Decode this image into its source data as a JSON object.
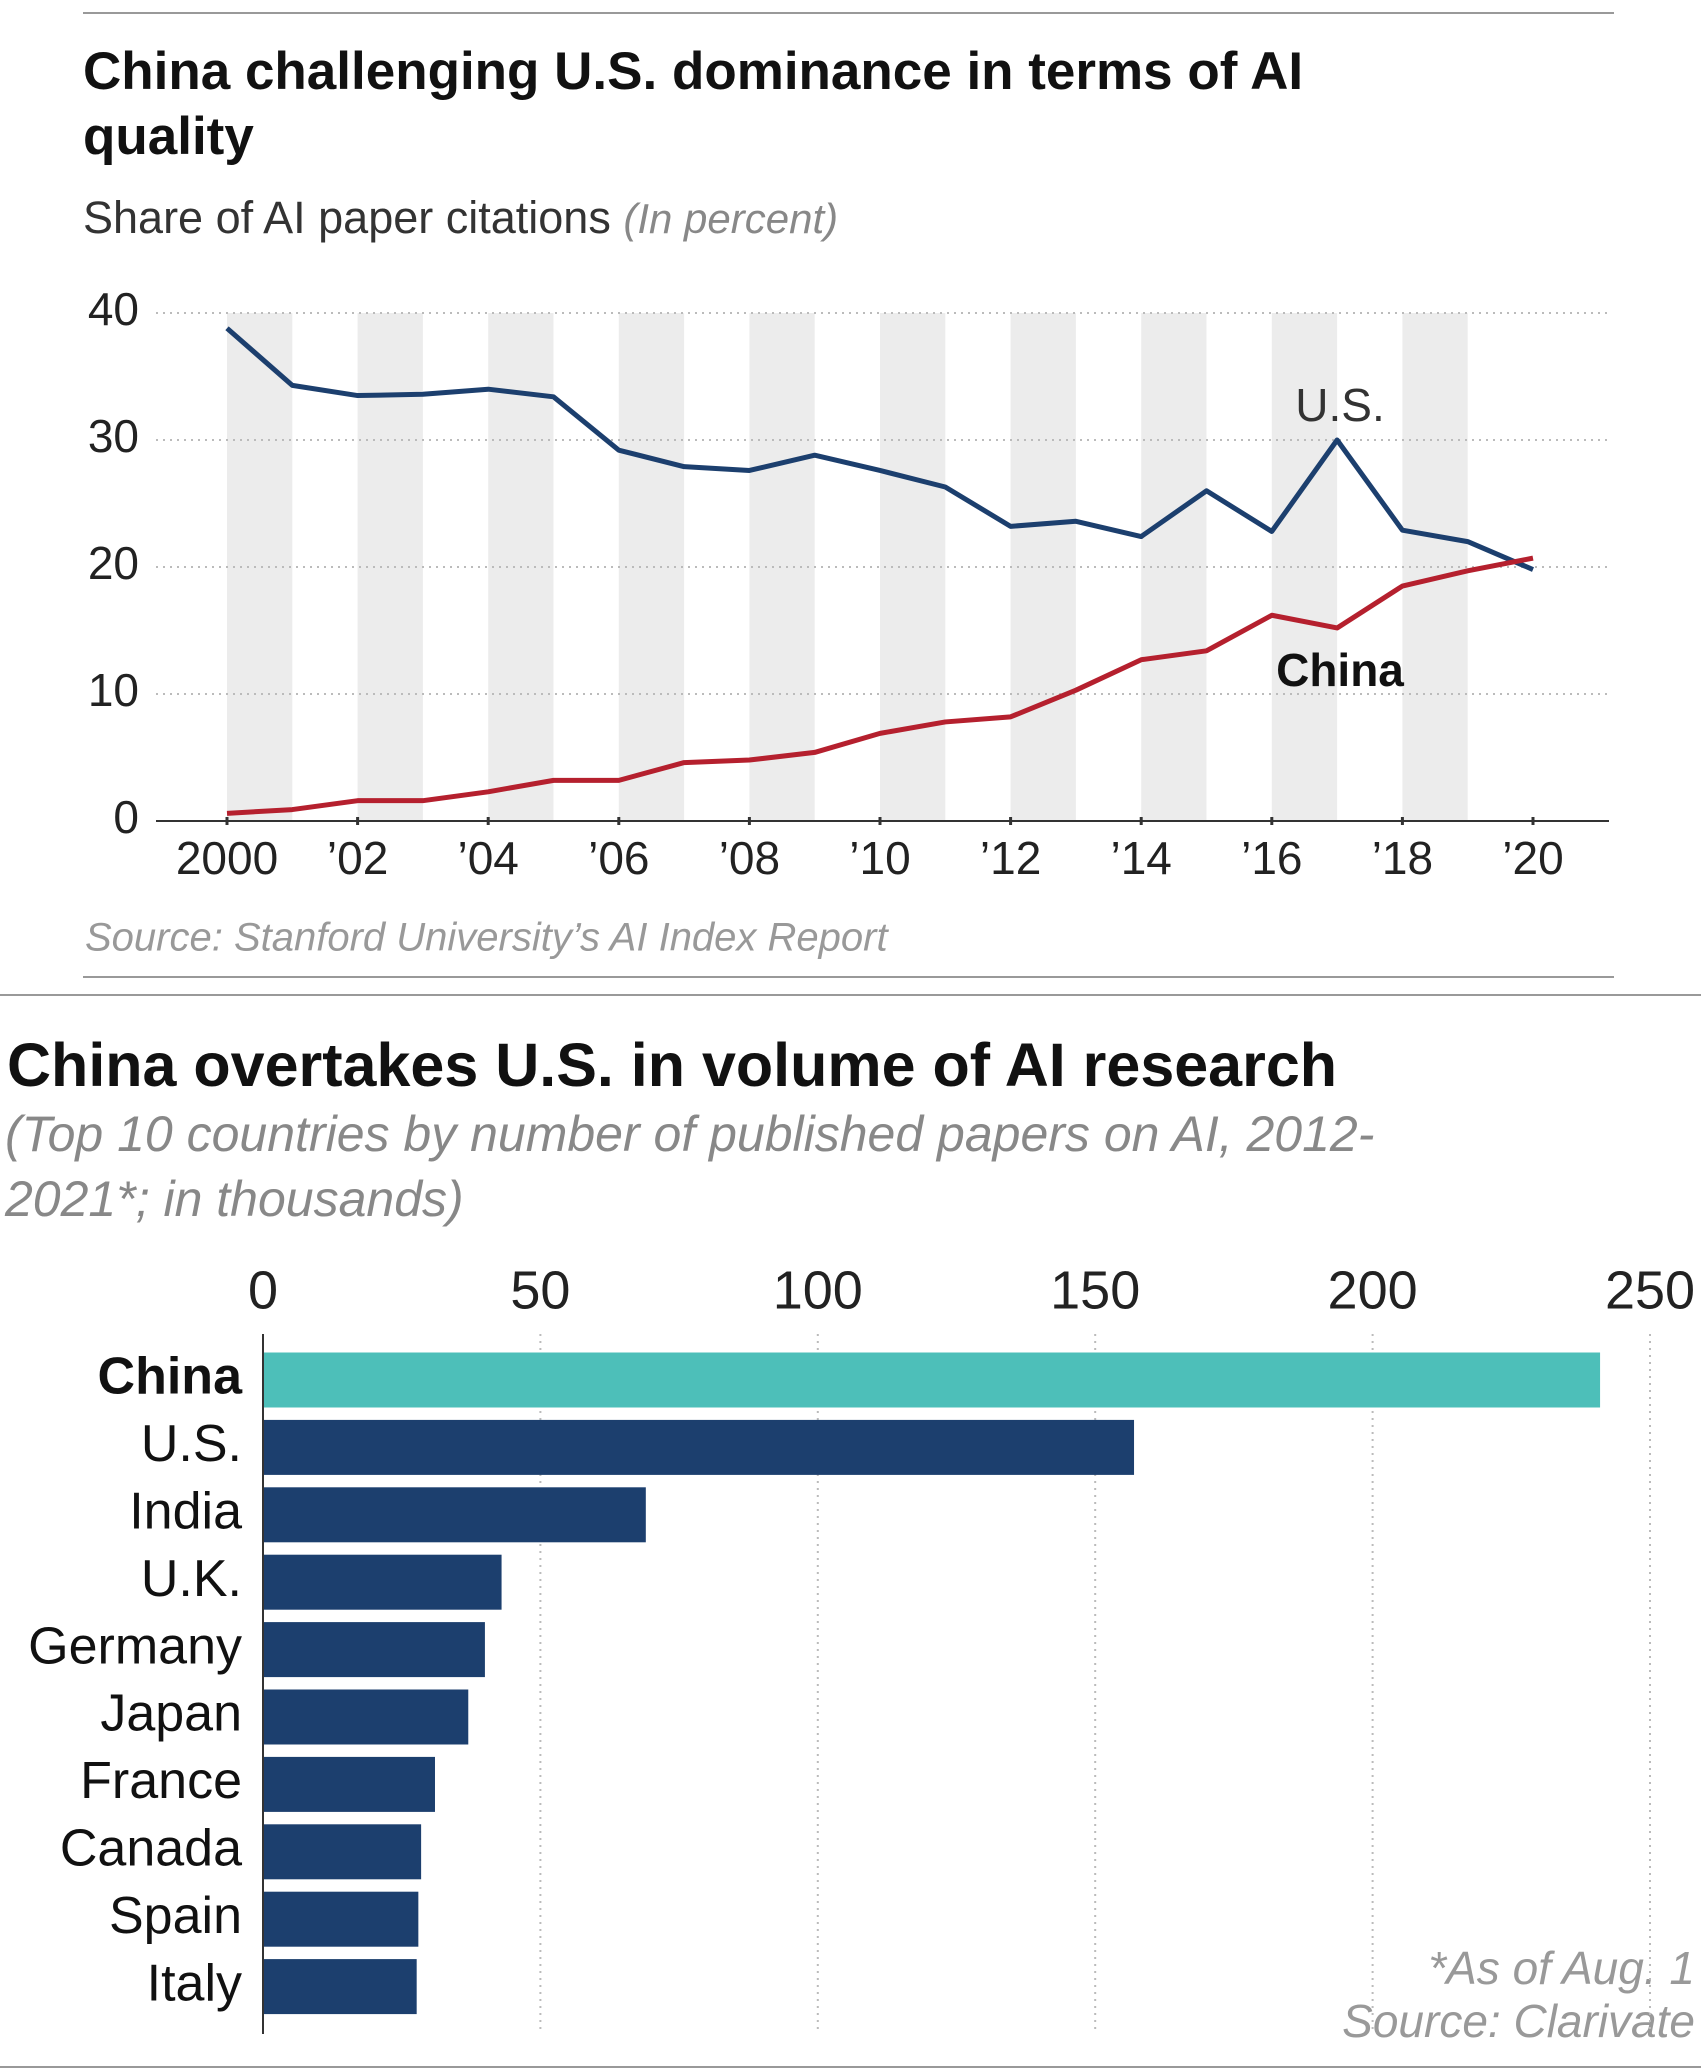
{
  "chart_data": [
    {
      "type": "line",
      "title": "China challenging U.S. dominance in terms of AI quality",
      "subtitle": "Share of AI paper citations",
      "unit": "(In percent)",
      "source": "Source: Stanford University’s AI Index Report",
      "x": [
        2000,
        2001,
        2002,
        2003,
        2004,
        2005,
        2006,
        2007,
        2008,
        2009,
        2010,
        2011,
        2012,
        2013,
        2014,
        2015,
        2016,
        2017,
        2018,
        2019,
        2020
      ],
      "series": [
        {
          "name": "U.S.",
          "color": "#1c3f6e",
          "values": [
            38.8,
            34.3,
            33.5,
            33.6,
            34.0,
            33.4,
            29.2,
            27.9,
            27.6,
            28.8,
            27.6,
            26.3,
            23.2,
            23.6,
            22.4,
            26.0,
            22.8,
            30.0,
            22.9,
            22.0,
            19.8
          ]
        },
        {
          "name": "China",
          "color": "#b5202e",
          "values": [
            0.6,
            0.9,
            1.6,
            1.6,
            2.3,
            3.2,
            3.2,
            4.6,
            4.8,
            5.4,
            6.9,
            7.8,
            8.2,
            10.3,
            12.7,
            13.4,
            16.2,
            15.2,
            18.5,
            19.7,
            20.7
          ]
        }
      ],
      "xlim": [
        2000,
        2020
      ],
      "xticks": [
        {
          "value": 2000,
          "label": "2000"
        },
        {
          "value": 2002,
          "label": "’02"
        },
        {
          "value": 2004,
          "label": "’04"
        },
        {
          "value": 2006,
          "label": "’06"
        },
        {
          "value": 2008,
          "label": "’08"
        },
        {
          "value": 2010,
          "label": "’10"
        },
        {
          "value": 2012,
          "label": "’12"
        },
        {
          "value": 2014,
          "label": "’14"
        },
        {
          "value": 2016,
          "label": "’16"
        },
        {
          "value": 2018,
          "label": "’18"
        },
        {
          "value": 2020,
          "label": "’20"
        }
      ],
      "ylim": [
        0,
        40
      ],
      "yticks": [
        0,
        10,
        20,
        30,
        40
      ],
      "grid": true
    },
    {
      "type": "hbar",
      "title": "China overtakes U.S. in volume of AI research",
      "subtitle": "(Top 10 countries by number of published papers on AI, 2012-2021*; in thousands)",
      "note": "*As of Aug. 1",
      "source": "Source: Clarivate",
      "categories": [
        "China",
        "U.S.",
        "India",
        "U.K.",
        "Germany",
        "Japan",
        "France",
        "Canada",
        "Spain",
        "Italy"
      ],
      "values": [
        241,
        157,
        69,
        43,
        40,
        37,
        31,
        28.5,
        28,
        27.7
      ],
      "colors": [
        "#4dbfb9",
        "#1c3f6e",
        "#1c3f6e",
        "#1c3f6e",
        "#1c3f6e",
        "#1c3f6e",
        "#1c3f6e",
        "#1c3f6e",
        "#1c3f6e",
        "#1c3f6e"
      ],
      "highlight_color": "#4dbfb9",
      "xlim": [
        0,
        250
      ],
      "xticks": [
        0,
        50,
        100,
        150,
        200,
        250
      ],
      "grid": true
    }
  ]
}
